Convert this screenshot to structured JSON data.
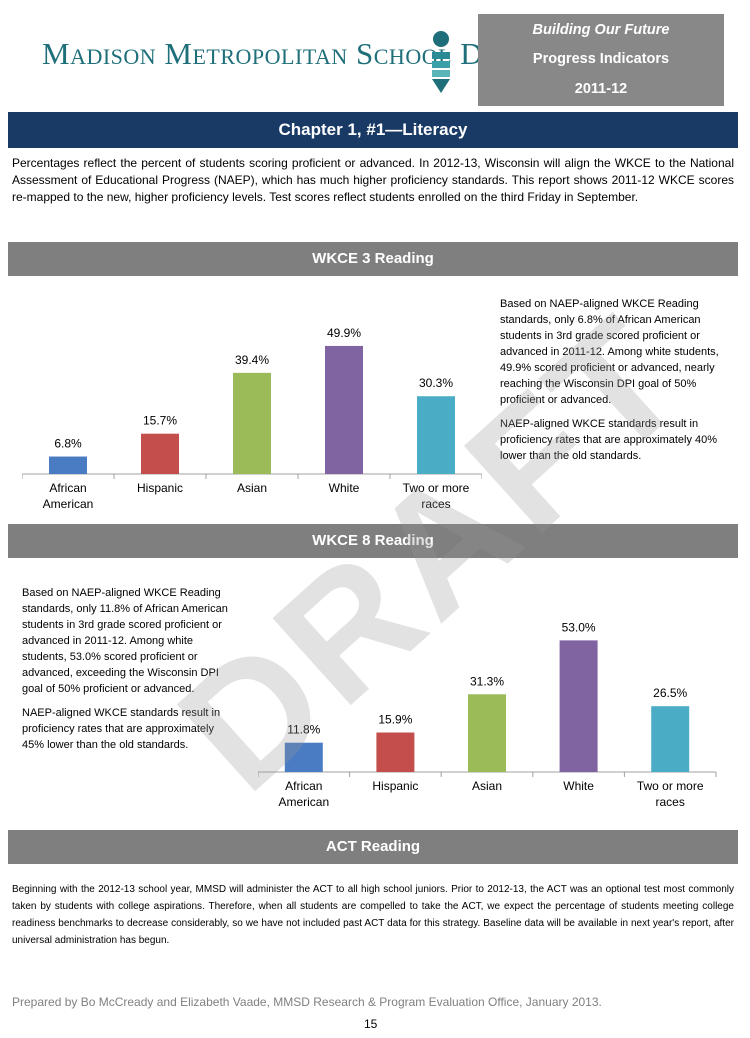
{
  "header": {
    "logo_text": "Madison Metropolitan School District",
    "box_line1": "Building Our Future",
    "box_line2": "Progress Indicators",
    "box_line3": "2011-12"
  },
  "chapter_title": "Chapter 1, #1—Literacy",
  "intro_text": "Percentages reflect the percent of students scoring proficient or advanced. In 2012-13, Wisconsin will align the WKCE to the National Assessment of Educational Progress (NAEP), which has much higher proficiency standards. This report shows 2011-12 WKCE scores re-mapped to the new, higher proficiency levels. Test scores reflect students enrolled on the third Friday in September.",
  "wkce3": {
    "title": "WKCE 3 Reading",
    "para1": "Based on NAEP-aligned WKCE Reading standards, only 6.8% of African American students in 3rd grade scored proficient or advanced in 2011-12. Among white students, 49.9% scored proficient or advanced, nearly reaching the Wisconsin DPI goal of 50% proficient or advanced.",
    "para2": "NAEP-aligned WKCE standards result in proficiency rates that are approximately 40% lower than the old standards."
  },
  "wkce8": {
    "title": "WKCE 8 Reading",
    "para1": "Based on NAEP-aligned WKCE Reading standards, only 11.8% of African American students in 3rd grade scored proficient or advanced in 2011-12. Among white students, 53.0% scored proficient or advanced, exceeding the Wisconsin DPI goal of 50% proficient or advanced.",
    "para2": "NAEP-aligned WKCE standards result in proficiency rates that are approximately 45% lower than the old standards."
  },
  "act": {
    "title": "ACT Reading",
    "text": "Beginning with the 2012-13 school year, MMSD will administer the ACT to all high school juniors. Prior to 2012-13, the ACT was an optional test most commonly taken by students with college aspirations. Therefore, when all students are compelled to take the ACT, we expect the percentage of students meeting college readiness benchmarks to decrease considerably, so we have not included past ACT data for this strategy. Baseline data will be available in next year's report, after universal administration has begun."
  },
  "footer": "Prepared by Bo McCready and Elizabeth Vaade, MMSD Research & Program Evaluation Office, January 2013.",
  "page_number": "15",
  "watermark": "DRAFT",
  "chart_data": [
    {
      "type": "bar",
      "title": "",
      "categories": [
        [
          "African",
          "American"
        ],
        [
          "Hispanic"
        ],
        [
          "Asian"
        ],
        [
          "White"
        ],
        [
          "Two or more",
          "races"
        ]
      ],
      "values": [
        6.8,
        15.7,
        39.4,
        49.9,
        30.3
      ],
      "labels": [
        "6.8%",
        "15.7%",
        "39.4%",
        "49.9%",
        "30.3%"
      ],
      "colors": [
        "#4a7cc3",
        "#c44e4c",
        "#9bbb59",
        "#8064a2",
        "#4bacc6"
      ],
      "ylim": [
        0,
        60
      ],
      "grid": false,
      "legend": "none"
    },
    {
      "type": "bar",
      "title": "",
      "categories": [
        [
          "African",
          "American"
        ],
        [
          "Hispanic"
        ],
        [
          "Asian"
        ],
        [
          "White"
        ],
        [
          "Two or more",
          "races"
        ]
      ],
      "values": [
        11.8,
        15.9,
        31.3,
        53.0,
        26.5
      ],
      "labels": [
        "11.8%",
        "15.9%",
        "31.3%",
        "53.0%",
        "26.5%"
      ],
      "colors": [
        "#4a7cc3",
        "#c44e4c",
        "#9bbb59",
        "#8064a2",
        "#4bacc6"
      ],
      "ylim": [
        0,
        60
      ],
      "grid": false,
      "legend": "none"
    }
  ]
}
